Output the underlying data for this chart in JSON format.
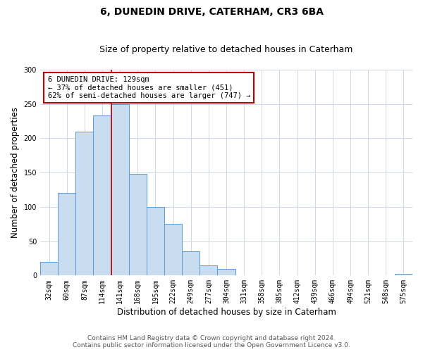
{
  "title": "6, DUNEDIN DRIVE, CATERHAM, CR3 6BA",
  "subtitle": "Size of property relative to detached houses in Caterham",
  "xlabel": "Distribution of detached houses by size in Caterham",
  "ylabel": "Number of detached properties",
  "bar_labels": [
    "32sqm",
    "60sqm",
    "87sqm",
    "114sqm",
    "141sqm",
    "168sqm",
    "195sqm",
    "222sqm",
    "249sqm",
    "277sqm",
    "304sqm",
    "331sqm",
    "358sqm",
    "385sqm",
    "412sqm",
    "439sqm",
    "466sqm",
    "494sqm",
    "521sqm",
    "548sqm",
    "575sqm"
  ],
  "bar_values": [
    20,
    120,
    210,
    233,
    250,
    148,
    100,
    75,
    35,
    15,
    10,
    0,
    0,
    0,
    0,
    0,
    0,
    0,
    0,
    0,
    2
  ],
  "bar_color": "#c9ddf0",
  "bar_edge_color": "#5b9bd5",
  "marker_line_color": "#c00000",
  "annotation_text": "6 DUNEDIN DRIVE: 129sqm\n← 37% of detached houses are smaller (451)\n62% of semi-detached houses are larger (747) →",
  "annotation_box_color": "#c00000",
  "ylim": [
    0,
    300
  ],
  "yticks": [
    0,
    50,
    100,
    150,
    200,
    250,
    300
  ],
  "footer_line1": "Contains HM Land Registry data © Crown copyright and database right 2024.",
  "footer_line2": "Contains public sector information licensed under the Open Government Licence v3.0.",
  "bg_color": "#ffffff",
  "grid_color": "#d0d8e8",
  "title_fontsize": 10,
  "subtitle_fontsize": 9,
  "axis_label_fontsize": 8.5,
  "tick_fontsize": 7,
  "footer_fontsize": 6.5,
  "annotation_fontsize": 7.5
}
